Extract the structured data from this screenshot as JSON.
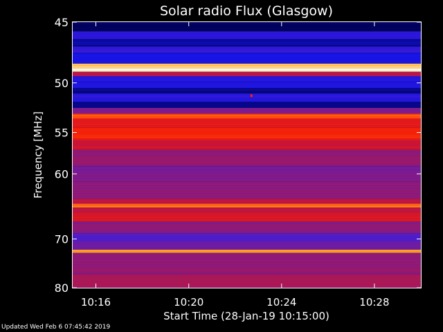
{
  "chart_data": {
    "type": "heatmap",
    "title": "Solar radio Flux (Glasgow)",
    "xlabel": "Start Time (28-Jan-19 10:15:00)",
    "ylabel": "Frequency [MHz]",
    "x_ticks": [
      "10:16",
      "10:20",
      "10:24",
      "10:28"
    ],
    "x_tick_values": [
      1,
      5,
      9,
      13
    ],
    "xlim": [
      0,
      15
    ],
    "y_ticks": [
      45,
      50,
      55,
      60,
      70,
      80
    ],
    "ylim": [
      45,
      80
    ],
    "y_scale": "reciprocal",
    "colormap": "blue-red-yellow-white",
    "bands": [
      {
        "freq": [
          45.0,
          45.7
        ],
        "level": 0.0
      },
      {
        "freq": [
          45.7,
          46.3
        ],
        "level": 0.2
      },
      {
        "freq": [
          46.3,
          46.9
        ],
        "level": 0.08
      },
      {
        "freq": [
          46.9,
          47.4
        ],
        "level": 0.22
      },
      {
        "freq": [
          47.4,
          48.3
        ],
        "level": 0.15
      },
      {
        "freq": [
          48.3,
          48.7
        ],
        "level": 0.92
      },
      {
        "freq": [
          48.7,
          49.0
        ],
        "level": 1.0
      },
      {
        "freq": [
          49.0,
          49.4
        ],
        "level": 0.55
      },
      {
        "freq": [
          49.4,
          50.5
        ],
        "level": 0.18
      },
      {
        "freq": [
          50.5,
          51.0
        ],
        "level": 0.05
      },
      {
        "freq": [
          51.0,
          51.8
        ],
        "level": 0.2
      },
      {
        "freq": [
          51.8,
          52.4
        ],
        "level": 0.06
      },
      {
        "freq": [
          52.4,
          53.0
        ],
        "level": 0.4
      },
      {
        "freq": [
          53.0,
          53.5
        ],
        "level": 0.8
      },
      {
        "freq": [
          53.5,
          54.5
        ],
        "level": 0.66
      },
      {
        "freq": [
          54.5,
          55.8
        ],
        "level": 0.74
      },
      {
        "freq": [
          55.8,
          57.0
        ],
        "level": 0.6
      },
      {
        "freq": [
          57.0,
          59.0
        ],
        "level": 0.44
      },
      {
        "freq": [
          59.0,
          61.0
        ],
        "level": 0.4
      },
      {
        "freq": [
          61.0,
          63.5
        ],
        "level": 0.43
      },
      {
        "freq": [
          63.5,
          64.2
        ],
        "level": 0.55
      },
      {
        "freq": [
          64.2,
          64.8
        ],
        "level": 0.84
      },
      {
        "freq": [
          64.8,
          65.6
        ],
        "level": 0.55
      },
      {
        "freq": [
          65.6,
          67.0
        ],
        "level": 0.64
      },
      {
        "freq": [
          67.0,
          69.0
        ],
        "level": 0.42
      },
      {
        "freq": [
          69.0,
          70.5
        ],
        "level": 0.3
      },
      {
        "freq": [
          70.5,
          72.0
        ],
        "level": 0.36
      },
      {
        "freq": [
          72.0,
          72.6
        ],
        "level": 0.88
      },
      {
        "freq": [
          72.6,
          74.0
        ],
        "level": 0.42
      },
      {
        "freq": [
          74.0,
          77.0
        ],
        "level": 0.44
      },
      {
        "freq": [
          77.0,
          80.0
        ],
        "level": 0.5
      }
    ],
    "events": [
      {
        "time": 7.7,
        "freq": 51.2,
        "level": 0.75
      }
    ]
  },
  "footer": "Updated Wed Feb  6 07:45:42 2019"
}
